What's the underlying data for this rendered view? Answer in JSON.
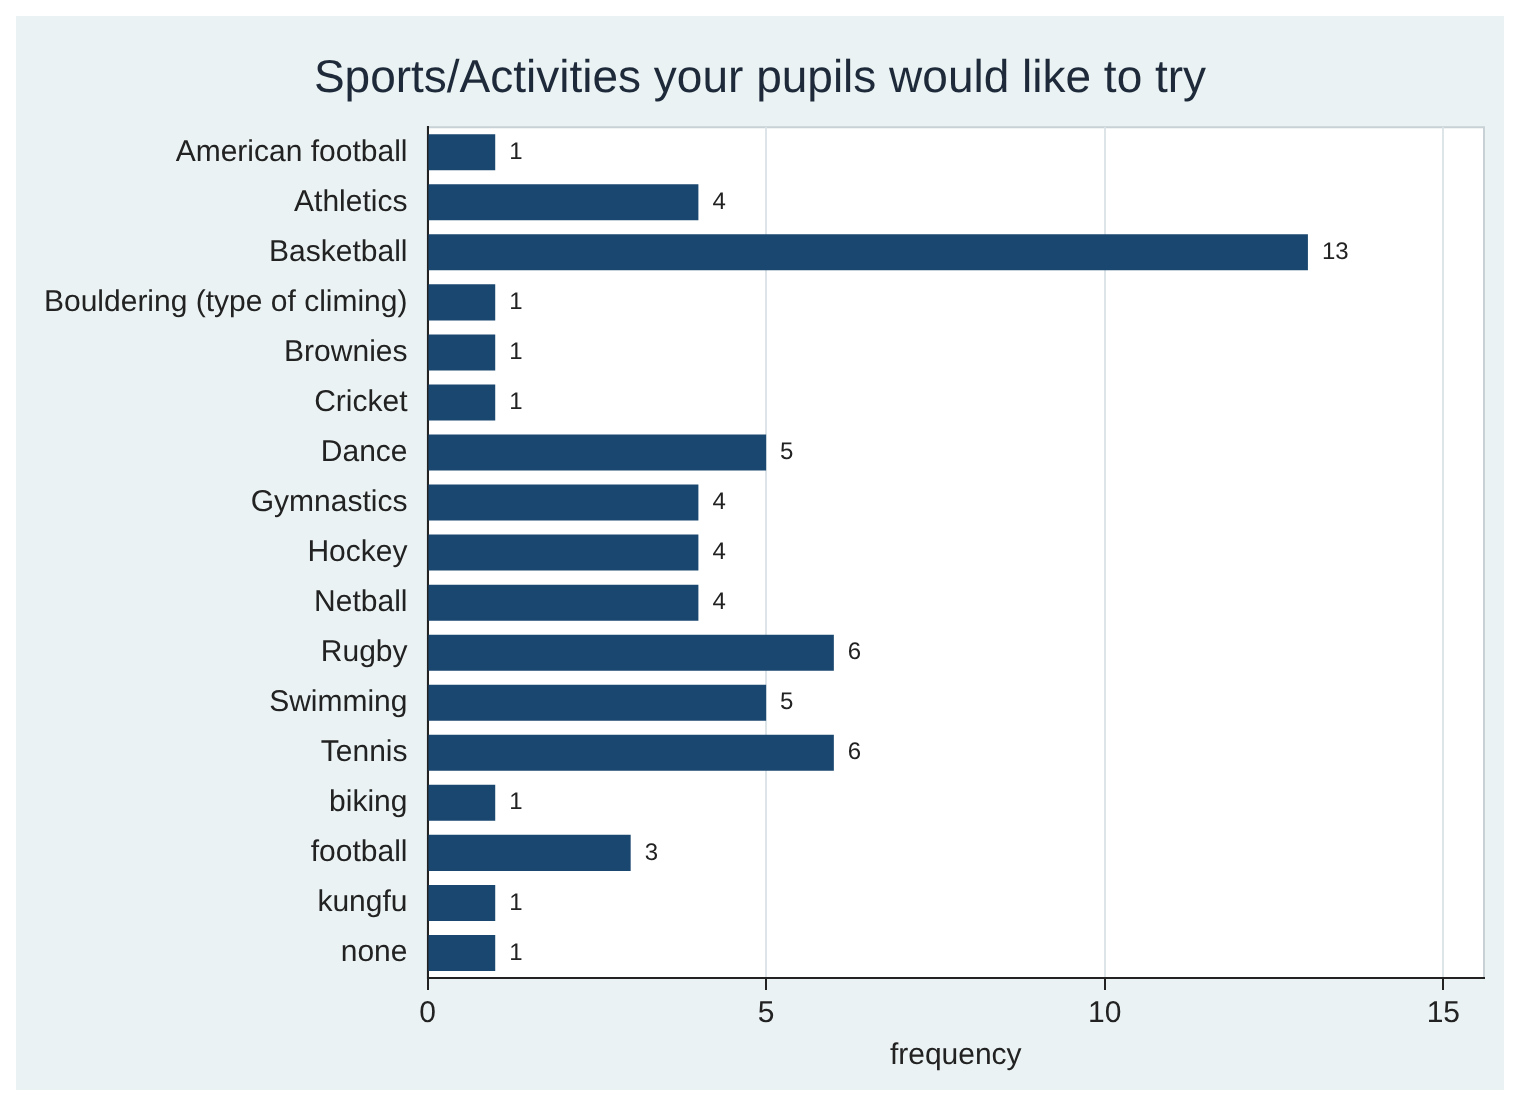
{
  "chart_data": {
    "type": "bar",
    "orientation": "horizontal",
    "title": "Sports/Activities your pupils would like to try",
    "xlabel": "frequency",
    "categories": [
      "American football",
      "Athletics",
      "Basketball",
      "Bouldering (type of climing)",
      "Brownies",
      "Cricket",
      "Dance",
      "Gymnastics",
      "Hockey",
      "Netball",
      "Rugby",
      "Swimming",
      "Tennis",
      "biking",
      "football",
      "kungfu",
      "none"
    ],
    "values": [
      1,
      4,
      13,
      1,
      1,
      1,
      5,
      4,
      4,
      4,
      6,
      5,
      6,
      1,
      3,
      1,
      1
    ],
    "color": "#1a476f",
    "xlim": [
      0,
      15.6
    ],
    "xticks": [
      0,
      5,
      10,
      15
    ],
    "grid": "x",
    "data_labels": true,
    "legend": false
  }
}
